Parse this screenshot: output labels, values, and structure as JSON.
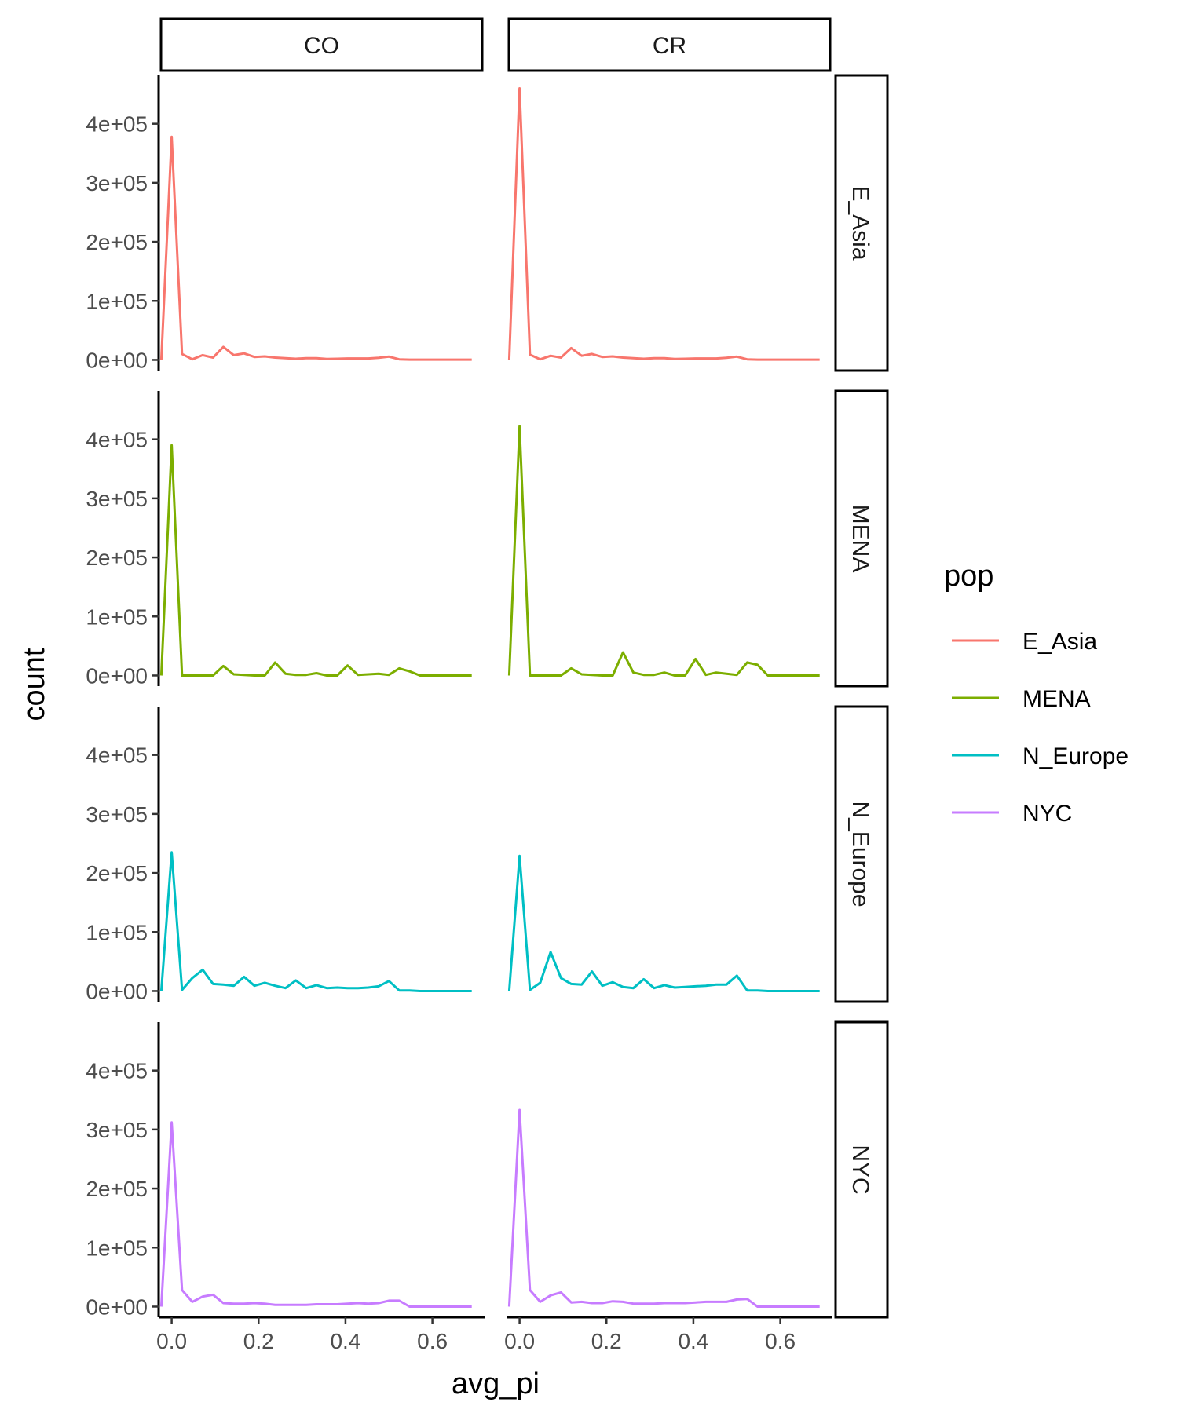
{
  "chart_data": {
    "type": "line",
    "xlabel": "avg_pi",
    "ylabel": "count",
    "xlim": [
      -0.03,
      0.72
    ],
    "ylim": [
      -18000,
      482000
    ],
    "x_ticks": [
      0.0,
      0.2,
      0.4,
      0.6
    ],
    "x_tick_labels": [
      "0.0",
      "0.2",
      "0.4",
      "0.6"
    ],
    "y_ticks": [
      0,
      100000,
      200000,
      300000,
      400000
    ],
    "y_tick_labels": [
      "0e+00",
      "1e+05",
      "2e+05",
      "3e+05",
      "4e+05"
    ],
    "facet_cols": [
      "CO",
      "CR"
    ],
    "facet_rows": [
      "E_Asia",
      "MENA",
      "N_Europe",
      "NYC"
    ],
    "legend": {
      "title": "pop",
      "position": "right",
      "entries": [
        "E_Asia",
        "MENA",
        "N_Europe",
        "NYC"
      ]
    },
    "colors": {
      "E_Asia": "#F8766D",
      "MENA": "#7CAE00",
      "N_Europe": "#00BFC4",
      "NYC": "#C77CFF"
    },
    "x": [
      -0.0238,
      0.0,
      0.0238,
      0.0476,
      0.0714,
      0.0952,
      0.119,
      0.1429,
      0.1667,
      0.1905,
      0.2143,
      0.2381,
      0.2619,
      0.2857,
      0.3095,
      0.3333,
      0.3571,
      0.381,
      0.4048,
      0.4286,
      0.4524,
      0.4762,
      0.5,
      0.5238,
      0.5476,
      0.5714,
      0.5952,
      0.619,
      0.6429,
      0.6667,
      0.6905
    ],
    "panels": [
      {
        "row": "E_Asia",
        "col": "CO",
        "series": "E_Asia",
        "values": [
          0,
          378000,
          10000,
          1000,
          8000,
          4000,
          22000,
          8000,
          11000,
          5000,
          6000,
          4000,
          3000,
          2000,
          3000,
          3000,
          1500,
          2000,
          2500,
          2500,
          2500,
          3500,
          5500,
          1000,
          500,
          500,
          500,
          500,
          500,
          500,
          500
        ]
      },
      {
        "row": "E_Asia",
        "col": "CR",
        "series": "E_Asia",
        "values": [
          0,
          460000,
          9000,
          1000,
          7000,
          4000,
          20000,
          7000,
          10000,
          5000,
          6000,
          4000,
          3000,
          2000,
          3000,
          3000,
          1500,
          2000,
          2500,
          2500,
          2500,
          3500,
          5500,
          1000,
          500,
          500,
          500,
          500,
          500,
          500,
          500
        ]
      },
      {
        "row": "MENA",
        "col": "CO",
        "series": "MENA",
        "values": [
          0,
          390000,
          0,
          0,
          0,
          0,
          16000,
          2000,
          1000,
          0,
          0,
          22000,
          3000,
          1000,
          1000,
          4000,
          0,
          0,
          17000,
          1000,
          2000,
          3000,
          1000,
          12000,
          7000,
          0,
          0,
          0,
          0,
          0,
          0
        ]
      },
      {
        "row": "MENA",
        "col": "CR",
        "series": "MENA",
        "values": [
          0,
          422000,
          0,
          0,
          0,
          0,
          12000,
          2000,
          1000,
          0,
          0,
          39000,
          5000,
          1000,
          1000,
          5000,
          0,
          0,
          28000,
          1000,
          5000,
          3000,
          1000,
          22000,
          18000,
          0,
          0,
          0,
          0,
          0,
          0
        ]
      },
      {
        "row": "N_Europe",
        "col": "CO",
        "series": "N_Europe",
        "values": [
          0,
          235000,
          2000,
          22000,
          36000,
          12000,
          11000,
          9000,
          24000,
          9000,
          14000,
          9000,
          5000,
          18000,
          5000,
          10000,
          5000,
          6000,
          5000,
          5000,
          6000,
          8000,
          17000,
          1000,
          1000,
          0,
          0,
          0,
          0,
          0,
          0
        ]
      },
      {
        "row": "N_Europe",
        "col": "CR",
        "series": "N_Europe",
        "values": [
          0,
          229000,
          2000,
          14000,
          66000,
          22000,
          12000,
          11000,
          33000,
          9000,
          15000,
          7000,
          5000,
          20000,
          5000,
          10000,
          6000,
          7000,
          8000,
          9000,
          11000,
          11000,
          26000,
          1000,
          1000,
          0,
          0,
          0,
          0,
          0,
          0
        ]
      },
      {
        "row": "NYC",
        "col": "CO",
        "series": "NYC",
        "values": [
          0,
          312000,
          28000,
          8000,
          17000,
          20000,
          6000,
          5000,
          5000,
          6000,
          5000,
          3000,
          3000,
          3000,
          3000,
          4000,
          4000,
          4000,
          5000,
          6000,
          5000,
          6000,
          10000,
          10000,
          0,
          0,
          0,
          0,
          0,
          0,
          0
        ]
      },
      {
        "row": "NYC",
        "col": "CR",
        "series": "NYC",
        "values": [
          0,
          333000,
          28000,
          8000,
          19000,
          24000,
          7000,
          8000,
          6000,
          6000,
          9000,
          8000,
          5000,
          5000,
          5000,
          6000,
          6000,
          6000,
          7000,
          8000,
          8000,
          8000,
          12000,
          13000,
          0,
          0,
          0,
          0,
          0,
          0,
          0
        ]
      }
    ]
  }
}
